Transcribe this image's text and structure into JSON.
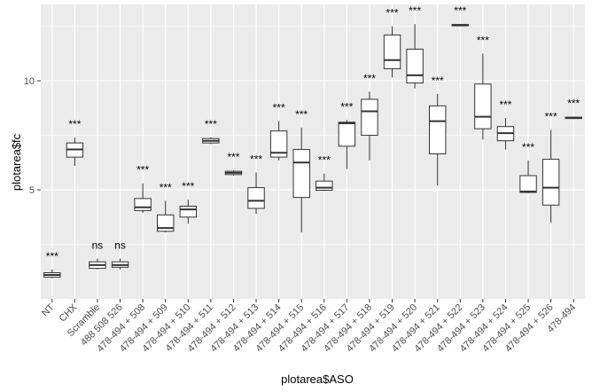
{
  "chart_data": {
    "type": "boxplot",
    "xlabel": "plotarea$ASO",
    "ylabel": "plotarea$fc",
    "ylim": [
      0.0,
      13.5
    ],
    "yticks": [
      5,
      10
    ],
    "grid": true,
    "panel_color": "#ebebeb",
    "grid_color": "#ffffff",
    "categories": [
      "NT",
      "CHX",
      "Scramble",
      "488 508 526",
      "478-494 + 508",
      "478-494 + 509",
      "478-494 + 510",
      "478-494 + 511",
      "478-494 + 512",
      "478-494 + 513",
      "478-494 + 514",
      "478-494 + 515",
      "478-494 + 516",
      "478-494 + 517",
      "478-494 + 518",
      "478-494 + 519",
      "478-494 + 520",
      "478-494 + 521",
      "478-494 + 522",
      "478-494 + 523",
      "478-494 + 524",
      "478-494 + 525",
      "478-494 + 526",
      "478-494"
    ],
    "boxes": [
      {
        "min": 0.95,
        "q1": 1.0,
        "median": 1.1,
        "q3": 1.2,
        "max": 1.35
      },
      {
        "min": 6.1,
        "q1": 6.5,
        "median": 6.85,
        "q3": 7.15,
        "max": 7.4
      },
      {
        "min": 1.35,
        "q1": 1.4,
        "median": 1.55,
        "q3": 1.7,
        "max": 1.85
      },
      {
        "min": 1.35,
        "q1": 1.45,
        "median": 1.55,
        "q3": 1.7,
        "max": 1.85
      },
      {
        "min": 3.95,
        "q1": 4.05,
        "median": 4.2,
        "q3": 4.6,
        "max": 5.3
      },
      {
        "min": 3.05,
        "q1": 3.1,
        "median": 3.25,
        "q3": 3.85,
        "max": 4.5
      },
      {
        "min": 3.45,
        "q1": 3.75,
        "median": 4.1,
        "q3": 4.25,
        "max": 4.55
      },
      {
        "min": 7.1,
        "q1": 7.15,
        "median": 7.25,
        "q3": 7.35,
        "max": 7.4
      },
      {
        "min": 5.65,
        "q1": 5.7,
        "median": 5.78,
        "q3": 5.85,
        "max": 5.9
      },
      {
        "min": 3.9,
        "q1": 4.15,
        "median": 4.5,
        "q3": 5.1,
        "max": 5.8
      },
      {
        "min": 6.35,
        "q1": 6.5,
        "median": 6.7,
        "q3": 7.7,
        "max": 8.15
      },
      {
        "min": 3.05,
        "q1": 4.65,
        "median": 6.25,
        "q3": 6.85,
        "max": 7.85
      },
      {
        "min": 4.95,
        "q1": 4.98,
        "median": 5.1,
        "q3": 5.4,
        "max": 5.75
      },
      {
        "min": 5.95,
        "q1": 7.0,
        "median": 8.05,
        "q3": 8.1,
        "max": 8.2
      },
      {
        "min": 6.35,
        "q1": 7.5,
        "median": 8.6,
        "q3": 9.15,
        "max": 9.5
      },
      {
        "min": 10.15,
        "q1": 10.55,
        "median": 10.95,
        "q3": 12.1,
        "max": 12.5
      },
      {
        "min": 9.65,
        "q1": 9.9,
        "median": 10.25,
        "q3": 11.45,
        "max": 12.6
      },
      {
        "min": 5.2,
        "q1": 6.65,
        "median": 8.15,
        "q3": 8.85,
        "max": 9.4
      },
      {
        "min": 12.5,
        "q1": 12.52,
        "median": 12.55,
        "q3": 12.58,
        "max": 12.6
      },
      {
        "min": 7.3,
        "q1": 7.8,
        "median": 8.35,
        "q3": 9.85,
        "max": 11.25
      },
      {
        "min": 6.85,
        "q1": 7.25,
        "median": 7.6,
        "q3": 7.9,
        "max": 8.3
      },
      {
        "min": 4.85,
        "q1": 4.88,
        "median": 4.92,
        "q3": 5.65,
        "max": 6.35
      },
      {
        "min": 3.5,
        "q1": 4.3,
        "median": 5.1,
        "q3": 6.4,
        "max": 7.75
      },
      {
        "min": 8.25,
        "q1": 8.27,
        "median": 8.3,
        "q3": 8.33,
        "max": 8.35
      }
    ],
    "significance": [
      "***",
      "***",
      "ns",
      "ns",
      "***",
      "***",
      "***",
      "***",
      "***",
      "***",
      "***",
      "***",
      "***",
      "***",
      "***",
      "***",
      "***",
      "***",
      "***",
      "***",
      "***",
      "***",
      "***",
      "***"
    ]
  }
}
